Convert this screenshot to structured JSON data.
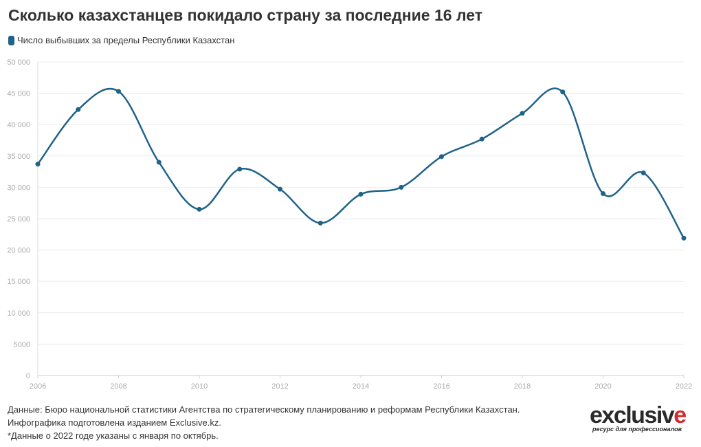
{
  "chart_data": {
    "type": "line",
    "title": "Сколько казахстанцев покидало страну за последние 16 лет",
    "xlabel": "",
    "ylabel": "",
    "x": [
      2006,
      2007,
      2008,
      2009,
      2010,
      2011,
      2012,
      2013,
      2014,
      2015,
      2016,
      2017,
      2018,
      2019,
      2020,
      2021,
      2022
    ],
    "series": [
      {
        "name": "Число выбывших за пределы Республики Казахстан",
        "color": "#1f6389",
        "values": [
          33700,
          42400,
          45300,
          34000,
          26500,
          32900,
          29700,
          24300,
          28900,
          30000,
          34900,
          37700,
          41800,
          45200,
          29000,
          32300,
          21900
        ]
      }
    ],
    "xlim": [
      2006,
      2022
    ],
    "ylim": [
      0,
      50000
    ],
    "x_ticks": [
      "2006",
      "2008",
      "2010",
      "2012",
      "2014",
      "2016",
      "2018",
      "2020",
      "2022"
    ],
    "y_ticks": [
      "0",
      "5000",
      "10 000",
      "15 000",
      "20 000",
      "25 000",
      "30 000",
      "35 000",
      "40 000",
      "45 000",
      "50 000"
    ],
    "grid": true,
    "legend_position": "top-left"
  },
  "footer": {
    "line1": "Данные: Бюро национальной статистики Агентства по стратегическому планированию и реформам Республики Казахстан.",
    "line2": "Инфографика подготовлена изданием Exclusive.kz.",
    "line3": "*Данные о 2022 годе указаны с января по октябрь."
  },
  "logo": {
    "word": "exclusive",
    "tagline": "ресурс для профессионалов",
    "accent_color": "#d42a2a"
  }
}
